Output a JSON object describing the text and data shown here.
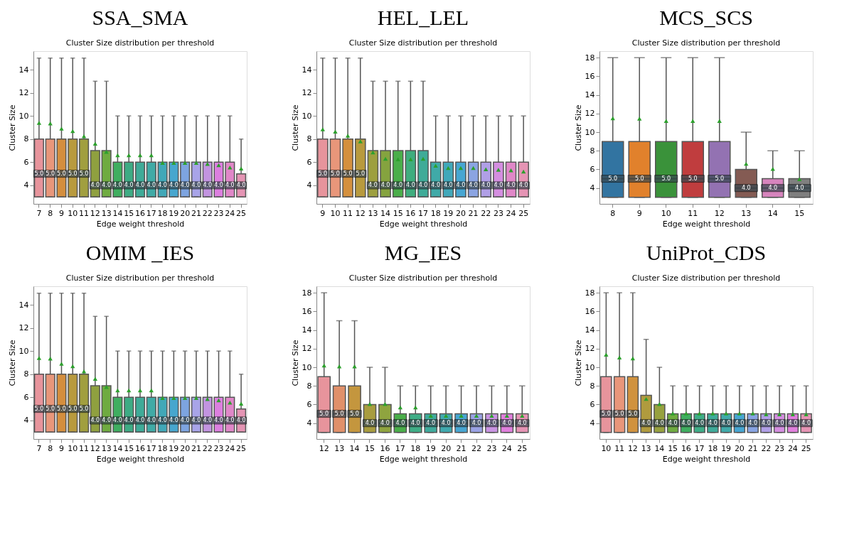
{
  "chart_data": [
    {
      "type": "box",
      "title": "SSA_SMA",
      "subtitle": "Cluster Size distribution per threshold",
      "xlabel": "Edge weight threshold",
      "ylabel": "Cluster Size",
      "ylim": [
        2.4,
        15.6
      ],
      "yticks": [
        4,
        6,
        8,
        10,
        12,
        14
      ],
      "grid": false,
      "value_labels": [
        "5.0",
        "5.0",
        "5.0",
        "5.0",
        "5.0",
        "4.0",
        "4.0",
        "4.0",
        "4.0",
        "4.0",
        "4.0",
        "4.0",
        "4.0",
        "4.0",
        "4.0",
        "4.0",
        "4.0",
        "4.0",
        "4.0"
      ],
      "categories": [
        "7",
        "8",
        "9",
        "10",
        "11",
        "12",
        "13",
        "14",
        "15",
        "16",
        "17",
        "18",
        "19",
        "20",
        "21",
        "22",
        "23",
        "24",
        "25"
      ],
      "colors": [
        "#e7949c",
        "#e8967a",
        "#d48e3e",
        "#b89a3e",
        "#a19f3f",
        "#8fa03f",
        "#6fab40",
        "#3fae60",
        "#3eab84",
        "#3fab98",
        "#40aaa6",
        "#41a8b8",
        "#47a6ce",
        "#7da4e0",
        "#a8a4e8",
        "#c294e0",
        "#dc7fdf",
        "#e087c8",
        "#e594b4"
      ],
      "boxes": [
        {
          "low": 3,
          "q1": 3,
          "median": 5,
          "q3": 8,
          "high": 15,
          "mean": 9.4
        },
        {
          "low": 3,
          "q1": 3,
          "median": 5,
          "q3": 8,
          "high": 15,
          "mean": 9.35
        },
        {
          "low": 3,
          "q1": 3,
          "median": 5,
          "q3": 8,
          "high": 15,
          "mean": 8.9
        },
        {
          "low": 3,
          "q1": 3,
          "median": 5,
          "q3": 8,
          "high": 15,
          "mean": 8.7
        },
        {
          "low": 3,
          "q1": 3,
          "median": 5,
          "q3": 8,
          "high": 15,
          "mean": 8.25
        },
        {
          "low": 3,
          "q1": 3,
          "median": 4,
          "q3": 7,
          "high": 13,
          "mean": 7.6
        },
        {
          "low": 3,
          "q1": 3,
          "median": 4,
          "q3": 7,
          "high": 13,
          "mean": 6.9
        },
        {
          "low": 3,
          "q1": 3,
          "median": 4,
          "q3": 6,
          "high": 10,
          "mean": 6.6
        },
        {
          "low": 3,
          "q1": 3,
          "median": 4,
          "q3": 6,
          "high": 10,
          "mean": 6.6
        },
        {
          "low": 3,
          "q1": 3,
          "median": 4,
          "q3": 6,
          "high": 10,
          "mean": 6.6
        },
        {
          "low": 3,
          "q1": 3,
          "median": 4,
          "q3": 6,
          "high": 10,
          "mean": 6.6
        },
        {
          "low": 3,
          "q1": 3,
          "median": 4,
          "q3": 6,
          "high": 10,
          "mean": 5.95
        },
        {
          "low": 3,
          "q1": 3,
          "median": 4,
          "q3": 6,
          "high": 10,
          "mean": 5.95
        },
        {
          "low": 3,
          "q1": 3,
          "median": 4,
          "q3": 6,
          "high": 10,
          "mean": 5.95
        },
        {
          "low": 3,
          "q1": 3,
          "median": 4,
          "q3": 6,
          "high": 10,
          "mean": 5.95
        },
        {
          "low": 3,
          "q1": 3,
          "median": 4,
          "q3": 6,
          "high": 10,
          "mean": 5.85
        },
        {
          "low": 3,
          "q1": 3,
          "median": 4,
          "q3": 6,
          "high": 10,
          "mean": 5.75
        },
        {
          "low": 3,
          "q1": 3,
          "median": 4,
          "q3": 6,
          "high": 10,
          "mean": 5.55
        },
        {
          "low": 3,
          "q1": 3,
          "median": 4,
          "q3": 5,
          "high": 8,
          "mean": 5.45
        }
      ]
    },
    {
      "type": "box",
      "title": "HEL_LEL",
      "subtitle": "Cluster Size distribution per threshold",
      "xlabel": "Edge weight threshold",
      "ylabel": "Cluster Size",
      "ylim": [
        2.4,
        15.6
      ],
      "yticks": [
        4,
        6,
        8,
        10,
        12,
        14
      ],
      "grid": false,
      "value_labels": [
        "5.0",
        "5.0",
        "5.0",
        "5.0",
        "4.0",
        "4.0",
        "4.0",
        "4.0",
        "4.0",
        "4.0",
        "4.0",
        "4.0",
        "4.0",
        "4.0",
        "4.0",
        "4.0",
        "4.0"
      ],
      "categories": [
        "9",
        "10",
        "11",
        "12",
        "13",
        "14",
        "15",
        "16",
        "17",
        "18",
        "19",
        "20",
        "21",
        "22",
        "23",
        "24",
        "25"
      ],
      "colors": [
        "#e7949c",
        "#e8967a",
        "#d4903e",
        "#b89a3e",
        "#9d9f3f",
        "#85a33f",
        "#4aae4a",
        "#3fad7e",
        "#3fab98",
        "#40aaa8",
        "#41a8ba",
        "#47a6d2",
        "#8ba4e2",
        "#b09fe6",
        "#d48ee0",
        "#e087c8",
        "#e594b4"
      ],
      "boxes": [
        {
          "low": 3,
          "q1": 3,
          "median": 5,
          "q3": 8,
          "high": 15,
          "mean": 8.85
        },
        {
          "low": 3,
          "q1": 3,
          "median": 5,
          "q3": 8,
          "high": 15,
          "mean": 8.65
        },
        {
          "low": 3,
          "q1": 3,
          "median": 5,
          "q3": 8,
          "high": 15,
          "mean": 8.3
        },
        {
          "low": 3,
          "q1": 3,
          "median": 5,
          "q3": 8,
          "high": 15,
          "mean": 7.8
        },
        {
          "low": 3,
          "q1": 3,
          "median": 4,
          "q3": 7,
          "high": 13,
          "mean": 6.85
        },
        {
          "low": 3,
          "q1": 3,
          "median": 4,
          "q3": 7,
          "high": 13,
          "mean": 6.3
        },
        {
          "low": 3,
          "q1": 3,
          "median": 4,
          "q3": 7,
          "high": 13,
          "mean": 6.25
        },
        {
          "low": 3,
          "q1": 3,
          "median": 4,
          "q3": 7,
          "high": 13,
          "mean": 6.25
        },
        {
          "low": 3,
          "q1": 3,
          "median": 4,
          "q3": 7,
          "high": 13,
          "mean": 6.3
        },
        {
          "low": 3,
          "q1": 3,
          "median": 4,
          "q3": 6,
          "high": 10,
          "mean": 5.7
        },
        {
          "low": 3,
          "q1": 3,
          "median": 4,
          "q3": 6,
          "high": 10,
          "mean": 5.5
        },
        {
          "low": 3,
          "q1": 3,
          "median": 4,
          "q3": 6,
          "high": 10,
          "mean": 5.5
        },
        {
          "low": 3,
          "q1": 3,
          "median": 4,
          "q3": 6,
          "high": 10,
          "mean": 5.5
        },
        {
          "low": 3,
          "q1": 3,
          "median": 4,
          "q3": 6,
          "high": 10,
          "mean": 5.4
        },
        {
          "low": 3,
          "q1": 3,
          "median": 4,
          "q3": 6,
          "high": 10,
          "mean": 5.35
        },
        {
          "low": 3,
          "q1": 3,
          "median": 4,
          "q3": 6,
          "high": 10,
          "mean": 5.3
        },
        {
          "low": 3,
          "q1": 3,
          "median": 4,
          "q3": 6,
          "high": 10,
          "mean": 5.2
        }
      ]
    },
    {
      "type": "box",
      "title": "MCS_SCS",
      "subtitle": "Cluster Size distribution per threshold",
      "xlabel": "Edge weight threshold",
      "ylabel": "Cluster Size",
      "ylim": [
        2.3,
        18.7
      ],
      "yticks": [
        4,
        6,
        8,
        10,
        12,
        14,
        16,
        18
      ],
      "grid": false,
      "value_labels": [
        "5.0",
        "5.0",
        "5.0",
        "5.0",
        "5.0",
        "4.0",
        "4.0",
        "4.0"
      ],
      "categories": [
        "8",
        "9",
        "10",
        "11",
        "12",
        "13",
        "14",
        "15"
      ],
      "colors": [
        "#3274a1",
        "#e1812c",
        "#3a923a",
        "#c03d3e",
        "#9372b2",
        "#845b53",
        "#d684bd",
        "#7f7f7f"
      ],
      "boxes": [
        {
          "low": 3,
          "q1": 3,
          "median": 5,
          "q3": 9,
          "high": 18,
          "mean": 11.5
        },
        {
          "low": 3,
          "q1": 3,
          "median": 5,
          "q3": 9,
          "high": 18,
          "mean": 11.45
        },
        {
          "low": 3,
          "q1": 3,
          "median": 5,
          "q3": 9,
          "high": 18,
          "mean": 11.2
        },
        {
          "low": 3,
          "q1": 3,
          "median": 5,
          "q3": 9,
          "high": 18,
          "mean": 11.2
        },
        {
          "low": 3,
          "q1": 3,
          "median": 5,
          "q3": 9,
          "high": 18,
          "mean": 11.2
        },
        {
          "low": 3,
          "q1": 3,
          "median": 4,
          "q3": 6,
          "high": 10,
          "mean": 6.6
        },
        {
          "low": 3,
          "q1": 3,
          "median": 4,
          "q3": 5,
          "high": 8,
          "mean": 6.05
        },
        {
          "low": 3,
          "q1": 3,
          "median": 4,
          "q3": 5,
          "high": 8,
          "mean": 4.95
        }
      ]
    },
    {
      "type": "box",
      "title": "OMIM _IES",
      "subtitle": "Cluster Size distribution per threshold",
      "xlabel": "Edge weight threshold",
      "ylabel": "Cluster Size",
      "ylim": [
        2.4,
        15.6
      ],
      "yticks": [
        4,
        6,
        8,
        10,
        12,
        14
      ],
      "grid": false,
      "value_labels": [
        "5.0",
        "5.0",
        "5.0",
        "5.0",
        "5.0",
        "4.0",
        "4.0",
        "4.0",
        "4.0",
        "4.0",
        "4.0",
        "4.0",
        "4.0",
        "4.0",
        "4.0",
        "4.0",
        "4.0",
        "4.0",
        "4.0"
      ],
      "categories": [
        "7",
        "8",
        "9",
        "10",
        "11",
        "12",
        "13",
        "14",
        "15",
        "16",
        "17",
        "18",
        "19",
        "20",
        "21",
        "22",
        "23",
        "24",
        "25"
      ],
      "colors": [
        "#e7949c",
        "#e8967a",
        "#d48e3e",
        "#b89a3e",
        "#a19f3f",
        "#8fa03f",
        "#6fab40",
        "#3fae60",
        "#3eab84",
        "#3fab98",
        "#40aaa6",
        "#41a8b8",
        "#47a6ce",
        "#7da4e0",
        "#a8a4e8",
        "#c294e0",
        "#dc7fdf",
        "#e087c8",
        "#e594b4"
      ],
      "boxes": [
        {
          "low": 3,
          "q1": 3,
          "median": 5,
          "q3": 8,
          "high": 15,
          "mean": 9.4
        },
        {
          "low": 3,
          "q1": 3,
          "median": 5,
          "q3": 8,
          "high": 15,
          "mean": 9.35
        },
        {
          "low": 3,
          "q1": 3,
          "median": 5,
          "q3": 8,
          "high": 15,
          "mean": 8.9
        },
        {
          "low": 3,
          "q1": 3,
          "median": 5,
          "q3": 8,
          "high": 15,
          "mean": 8.7
        },
        {
          "low": 3,
          "q1": 3,
          "median": 5,
          "q3": 8,
          "high": 15,
          "mean": 8.25
        },
        {
          "low": 3,
          "q1": 3,
          "median": 4,
          "q3": 7,
          "high": 13,
          "mean": 7.6
        },
        {
          "low": 3,
          "q1": 3,
          "median": 4,
          "q3": 7,
          "high": 13,
          "mean": 6.9
        },
        {
          "low": 3,
          "q1": 3,
          "median": 4,
          "q3": 6,
          "high": 10,
          "mean": 6.6
        },
        {
          "low": 3,
          "q1": 3,
          "median": 4,
          "q3": 6,
          "high": 10,
          "mean": 6.6
        },
        {
          "low": 3,
          "q1": 3,
          "median": 4,
          "q3": 6,
          "high": 10,
          "mean": 6.6
        },
        {
          "low": 3,
          "q1": 3,
          "median": 4,
          "q3": 6,
          "high": 10,
          "mean": 6.6
        },
        {
          "low": 3,
          "q1": 3,
          "median": 4,
          "q3": 6,
          "high": 10,
          "mean": 5.95
        },
        {
          "low": 3,
          "q1": 3,
          "median": 4,
          "q3": 6,
          "high": 10,
          "mean": 5.95
        },
        {
          "low": 3,
          "q1": 3,
          "median": 4,
          "q3": 6,
          "high": 10,
          "mean": 5.95
        },
        {
          "low": 3,
          "q1": 3,
          "median": 4,
          "q3": 6,
          "high": 10,
          "mean": 5.95
        },
        {
          "low": 3,
          "q1": 3,
          "median": 4,
          "q3": 6,
          "high": 10,
          "mean": 5.85
        },
        {
          "low": 3,
          "q1": 3,
          "median": 4,
          "q3": 6,
          "high": 10,
          "mean": 5.75
        },
        {
          "low": 3,
          "q1": 3,
          "median": 4,
          "q3": 6,
          "high": 10,
          "mean": 5.55
        },
        {
          "low": 3,
          "q1": 3,
          "median": 4,
          "q3": 5,
          "high": 8,
          "mean": 5.45
        }
      ]
    },
    {
      "type": "box",
      "title": "MG_IES",
      "subtitle": "Cluster Size distribution per threshold",
      "xlabel": "Edge weight threshold",
      "ylabel": "Cluster Size",
      "ylim": [
        2.3,
        18.7
      ],
      "yticks": [
        4,
        6,
        8,
        10,
        12,
        14,
        16,
        18
      ],
      "grid": false,
      "value_labels": [
        "5.0",
        "5.0",
        "5.0",
        "4.0",
        "4.0",
        "4.0",
        "4.0",
        "4.0",
        "4.0",
        "4.0",
        "4.0",
        "4.0",
        "4.0",
        "4.0"
      ],
      "categories": [
        "12",
        "13",
        "14",
        "15",
        "16",
        "17",
        "18",
        "19",
        "20",
        "21",
        "22",
        "23",
        "24",
        "25"
      ],
      "colors": [
        "#e7949c",
        "#e0906a",
        "#c4963e",
        "#a89c3f",
        "#8fa43f",
        "#4aae4a",
        "#3fad86",
        "#3faa9c",
        "#40a9ae",
        "#47a6d2",
        "#9aa2e4",
        "#c994e2",
        "#e07fdc",
        "#e594b4"
      ],
      "boxes": [
        {
          "low": 3,
          "q1": 3,
          "median": 5,
          "q3": 9,
          "high": 18,
          "mean": 10.2
        },
        {
          "low": 3,
          "q1": 3,
          "median": 5,
          "q3": 8,
          "high": 15,
          "mean": 10.1
        },
        {
          "low": 3,
          "q1": 3,
          "median": 5,
          "q3": 8,
          "high": 15,
          "mean": 10.1
        },
        {
          "low": 3,
          "q1": 3,
          "median": 4,
          "q3": 6,
          "high": 10,
          "mean": 6.05
        },
        {
          "low": 3,
          "q1": 3,
          "median": 4,
          "q3": 6,
          "high": 10,
          "mean": 6.05
        },
        {
          "low": 3,
          "q1": 3,
          "median": 4,
          "q3": 5,
          "high": 8,
          "mean": 5.7
        },
        {
          "low": 3,
          "q1": 3,
          "median": 4,
          "q3": 5,
          "high": 8,
          "mean": 5.7
        },
        {
          "low": 3,
          "q1": 3,
          "median": 4,
          "q3": 5,
          "high": 8,
          "mean": 4.8
        },
        {
          "low": 3,
          "q1": 3,
          "median": 4,
          "q3": 5,
          "high": 8,
          "mean": 4.8
        },
        {
          "low": 3,
          "q1": 3,
          "median": 4,
          "q3": 5,
          "high": 8,
          "mean": 4.8
        },
        {
          "low": 3,
          "q1": 3,
          "median": 4,
          "q3": 5,
          "high": 8,
          "mean": 4.8
        },
        {
          "low": 3,
          "q1": 3,
          "median": 4,
          "q3": 5,
          "high": 8,
          "mean": 4.8
        },
        {
          "low": 3,
          "q1": 3,
          "median": 4,
          "q3": 5,
          "high": 8,
          "mean": 4.8
        },
        {
          "low": 3,
          "q1": 3,
          "median": 4,
          "q3": 5,
          "high": 8,
          "mean": 4.8
        }
      ]
    },
    {
      "type": "box",
      "title": "UniProt_CDS",
      "subtitle": "Cluster Size distribution per threshold",
      "xlabel": "Edge weight threshold",
      "ylabel": "Cluster Size",
      "ylim": [
        2.3,
        18.7
      ],
      "yticks": [
        4,
        6,
        8,
        10,
        12,
        14,
        16,
        18
      ],
      "grid": false,
      "value_labels": [
        "5.0",
        "5.0",
        "5.0",
        "4.0",
        "4.0",
        "4.0",
        "4.0",
        "4.0",
        "4.0",
        "4.0",
        "4.0",
        "4.0",
        "4.0",
        "4.0",
        "4.0",
        "4.0"
      ],
      "categories": [
        "10",
        "11",
        "12",
        "13",
        "14",
        "15",
        "16",
        "17",
        "18",
        "19",
        "20",
        "21",
        "22",
        "23",
        "24",
        "25"
      ],
      "colors": [
        "#e7949c",
        "#e8967a",
        "#d0923e",
        "#b09b3e",
        "#97a13f",
        "#6fab40",
        "#3fae60",
        "#3fad88",
        "#3fab9a",
        "#40aaaa",
        "#47a6d2",
        "#88a4e2",
        "#b09fe6",
        "#d48ee0",
        "#e07fdc",
        "#e594b4"
      ],
      "boxes": [
        {
          "low": 3,
          "q1": 3,
          "median": 5,
          "q3": 9,
          "high": 18,
          "mean": 11.35
        },
        {
          "low": 3,
          "q1": 3,
          "median": 5,
          "q3": 9,
          "high": 18,
          "mean": 11.05
        },
        {
          "low": 3,
          "q1": 3,
          "median": 5,
          "q3": 9,
          "high": 18,
          "mean": 10.95
        },
        {
          "low": 3,
          "q1": 3,
          "median": 4,
          "q3": 7,
          "high": 13,
          "mean": 6.6
        },
        {
          "low": 3,
          "q1": 3,
          "median": 4,
          "q3": 6,
          "high": 10,
          "mean": 6.05
        },
        {
          "low": 3,
          "q1": 3,
          "median": 4,
          "q3": 5,
          "high": 8,
          "mean": 5.05
        },
        {
          "low": 3,
          "q1": 3,
          "median": 4,
          "q3": 5,
          "high": 8,
          "mean": 5.05
        },
        {
          "low": 3,
          "q1": 3,
          "median": 4,
          "q3": 5,
          "high": 8,
          "mean": 5.05
        },
        {
          "low": 3,
          "q1": 3,
          "median": 4,
          "q3": 5,
          "high": 8,
          "mean": 5.05
        },
        {
          "low": 3,
          "q1": 3,
          "median": 4,
          "q3": 5,
          "high": 8,
          "mean": 5.05
        },
        {
          "low": 3,
          "q1": 3,
          "median": 4,
          "q3": 5,
          "high": 8,
          "mean": 5.05
        },
        {
          "low": 3,
          "q1": 3,
          "median": 4,
          "q3": 5,
          "high": 8,
          "mean": 5.05
        },
        {
          "low": 3,
          "q1": 3,
          "median": 4,
          "q3": 5,
          "high": 8,
          "mean": 4.95
        },
        {
          "low": 3,
          "q1": 3,
          "median": 4,
          "q3": 5,
          "high": 8,
          "mean": 4.95
        },
        {
          "low": 3,
          "q1": 3,
          "median": 4,
          "q3": 5,
          "high": 8,
          "mean": 4.95
        },
        {
          "low": 3,
          "q1": 3,
          "median": 4,
          "q3": 5,
          "high": 8,
          "mean": 4.95
        }
      ]
    }
  ]
}
